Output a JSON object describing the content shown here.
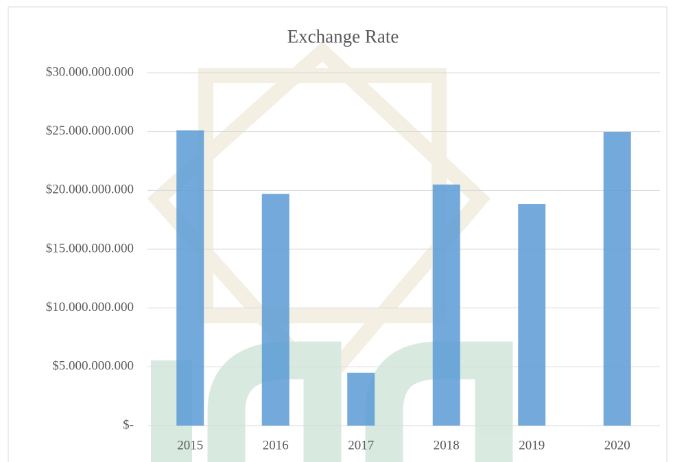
{
  "chart_data": {
    "type": "bar",
    "title": "Exchange Rate",
    "categories": [
      "2015",
      "2016",
      "2017",
      "2018",
      "2019",
      "2020"
    ],
    "values": [
      25100000000,
      19700000000,
      4500000000,
      20500000000,
      18850000000,
      24980000000
    ],
    "color": "#5b9bd5",
    "ylim": [
      0,
      30000000000
    ],
    "yticks": [
      {
        "value": 0,
        "label": "$-"
      },
      {
        "value": 5000000000,
        "label": "$5.000.000.000"
      },
      {
        "value": 10000000000,
        "label": "$10.000.000.000"
      },
      {
        "value": 15000000000,
        "label": "$15.000.000.000"
      },
      {
        "value": 20000000000,
        "label": "$20.000.000.000"
      },
      {
        "value": 25000000000,
        "label": "$25.000.000.000"
      },
      {
        "value": 30000000000,
        "label": "$30.000.000.000"
      }
    ],
    "grid": true
  }
}
